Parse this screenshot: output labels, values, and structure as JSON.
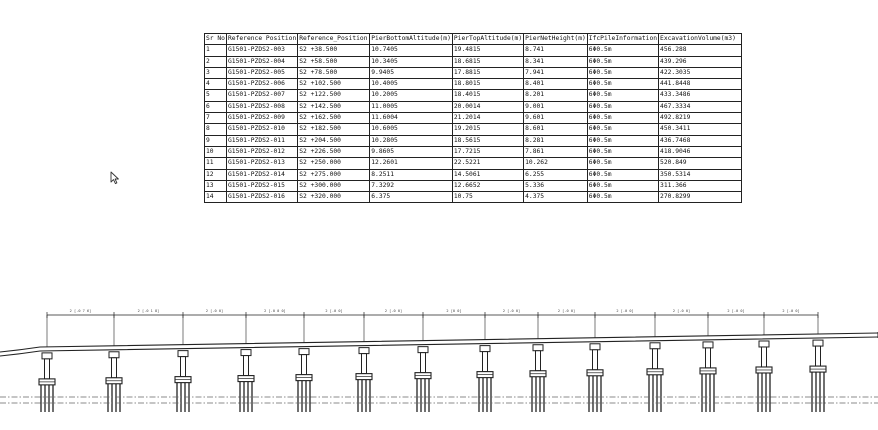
{
  "table": {
    "headers": [
      "Sr No",
      "Reference Position",
      "Reference_Position",
      "PierBottomAltitude(m)",
      "PierTopAltitude(m)",
      "PierNetHeight(m)",
      "IfcPileInformation",
      "ExcavationVolume(m3)"
    ],
    "rows": [
      [
        "1",
        "G1501-PZDS2-003",
        "S2  +38.500",
        "10.7405",
        "19.4815",
        "8.741",
        "6Φ0.5m",
        "456.288"
      ],
      [
        "2",
        "G1501-PZDS2-004",
        "S2  +58.500",
        "10.3405",
        "18.6815",
        "8.341",
        "6Φ0.5m",
        "439.296"
      ],
      [
        "3",
        "G1501-PZDS2-005",
        "S2  +78.500",
        "9.9405",
        "17.8815",
        "7.941",
        "6Φ0.5m",
        "422.3035"
      ],
      [
        "4",
        "G1501-PZDS2-006",
        "S2  +102.500",
        "10.4005",
        "18.8015",
        "8.401",
        "6Φ0.5m",
        "441.8448"
      ],
      [
        "5",
        "G1501-PZDS2-007",
        "S2  +122.500",
        "10.2005",
        "18.4015",
        "8.201",
        "6Φ0.5m",
        "433.3486"
      ],
      [
        "6",
        "G1501-PZDS2-008",
        "S2  +142.500",
        "11.0005",
        "20.0014",
        "9.001",
        "6Φ0.5m",
        "467.3334"
      ],
      [
        "7",
        "G1501-PZDS2-009",
        "S2  +162.500",
        "11.6004",
        "21.2014",
        "9.601",
        "6Φ0.5m",
        "492.8219"
      ],
      [
        "8",
        "G1501-PZDS2-010",
        "S2  +182.500",
        "10.6005",
        "19.2015",
        "8.601",
        "6Φ0.5m",
        "450.3411"
      ],
      [
        "9",
        "G1501-PZDS2-011",
        "S2  +204.500",
        "10.2805",
        "18.5615",
        "8.281",
        "6Φ0.5m",
        "436.7468"
      ],
      [
        "10",
        "G1501-PZDS2-012",
        "S2  +226.500",
        "9.8605",
        "17.7215",
        "7.861",
        "6Φ0.5m",
        "418.9046"
      ],
      [
        "11",
        "G1501-PZDS2-013",
        "S2  +250.000",
        "12.2601",
        "22.5221",
        "10.262",
        "6Φ0.5m",
        "520.849"
      ],
      [
        "12",
        "G1501-PZDS2-014",
        "S2  +275.000",
        "8.2511",
        "14.5061",
        "6.255",
        "6Φ0.5m",
        "350.5314"
      ],
      [
        "13",
        "G1501-PZDS2-015",
        "S2  +300.000",
        "7.3292",
        "12.6652",
        "5.336",
        "6Φ0.5m",
        "311.366"
      ],
      [
        "14",
        "G1501-PZDS2-016",
        "S2  +320.000",
        "6.375",
        "10.75",
        "4.375",
        "6Φ0.5m",
        "270.8299"
      ]
    ]
  },
  "drawing": {
    "span_labels": [
      "2 [.0 7 6]",
      "2 [.0 1 8]",
      "2 [.0 0]",
      "2 [.0 0 0]",
      "2 [.0 0]",
      "2 [.0 0]",
      "2 [0 0]",
      "2 [.0 0]",
      "2 [.0 0]",
      "2 [.0 0]",
      "2 [.0 0]",
      "2 [.0 0]",
      "2 [.0 0]"
    ],
    "pier_count": 14,
    "line_color": "#222222",
    "centerline_color": "#666666"
  },
  "cursor": {
    "icon": "mouse-pointer-icon"
  }
}
